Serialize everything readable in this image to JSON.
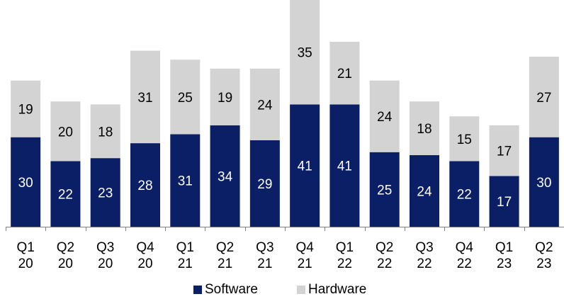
{
  "chart_data": {
    "type": "bar",
    "stacked": true,
    "categories": [
      [
        "Q1",
        "20"
      ],
      [
        "Q2",
        "20"
      ],
      [
        "Q3",
        "20"
      ],
      [
        "Q4",
        "20"
      ],
      [
        "Q1",
        "21"
      ],
      [
        "Q2",
        "21"
      ],
      [
        "Q3",
        "21"
      ],
      [
        "Q4",
        "21"
      ],
      [
        "Q1",
        "22"
      ],
      [
        "Q2",
        "22"
      ],
      [
        "Q3",
        "22"
      ],
      [
        "Q4",
        "22"
      ],
      [
        "Q1",
        "23"
      ],
      [
        "Q2",
        "23"
      ]
    ],
    "series": [
      {
        "name": "Software",
        "color": "#0b1f66",
        "label_color": "#ffffff",
        "values": [
          30,
          22,
          23,
          28,
          31,
          34,
          29,
          41,
          41,
          25,
          24,
          22,
          17,
          30
        ]
      },
      {
        "name": "Hardware",
        "color": "#d3d3d3",
        "label_color": "#000000",
        "values": [
          19,
          20,
          18,
          31,
          25,
          19,
          24,
          35,
          21,
          24,
          18,
          15,
          17,
          27
        ]
      }
    ],
    "ylim": [
      0,
      76
    ],
    "grid": false,
    "legend": "bottom",
    "title": "",
    "xlabel": "",
    "ylabel": ""
  }
}
